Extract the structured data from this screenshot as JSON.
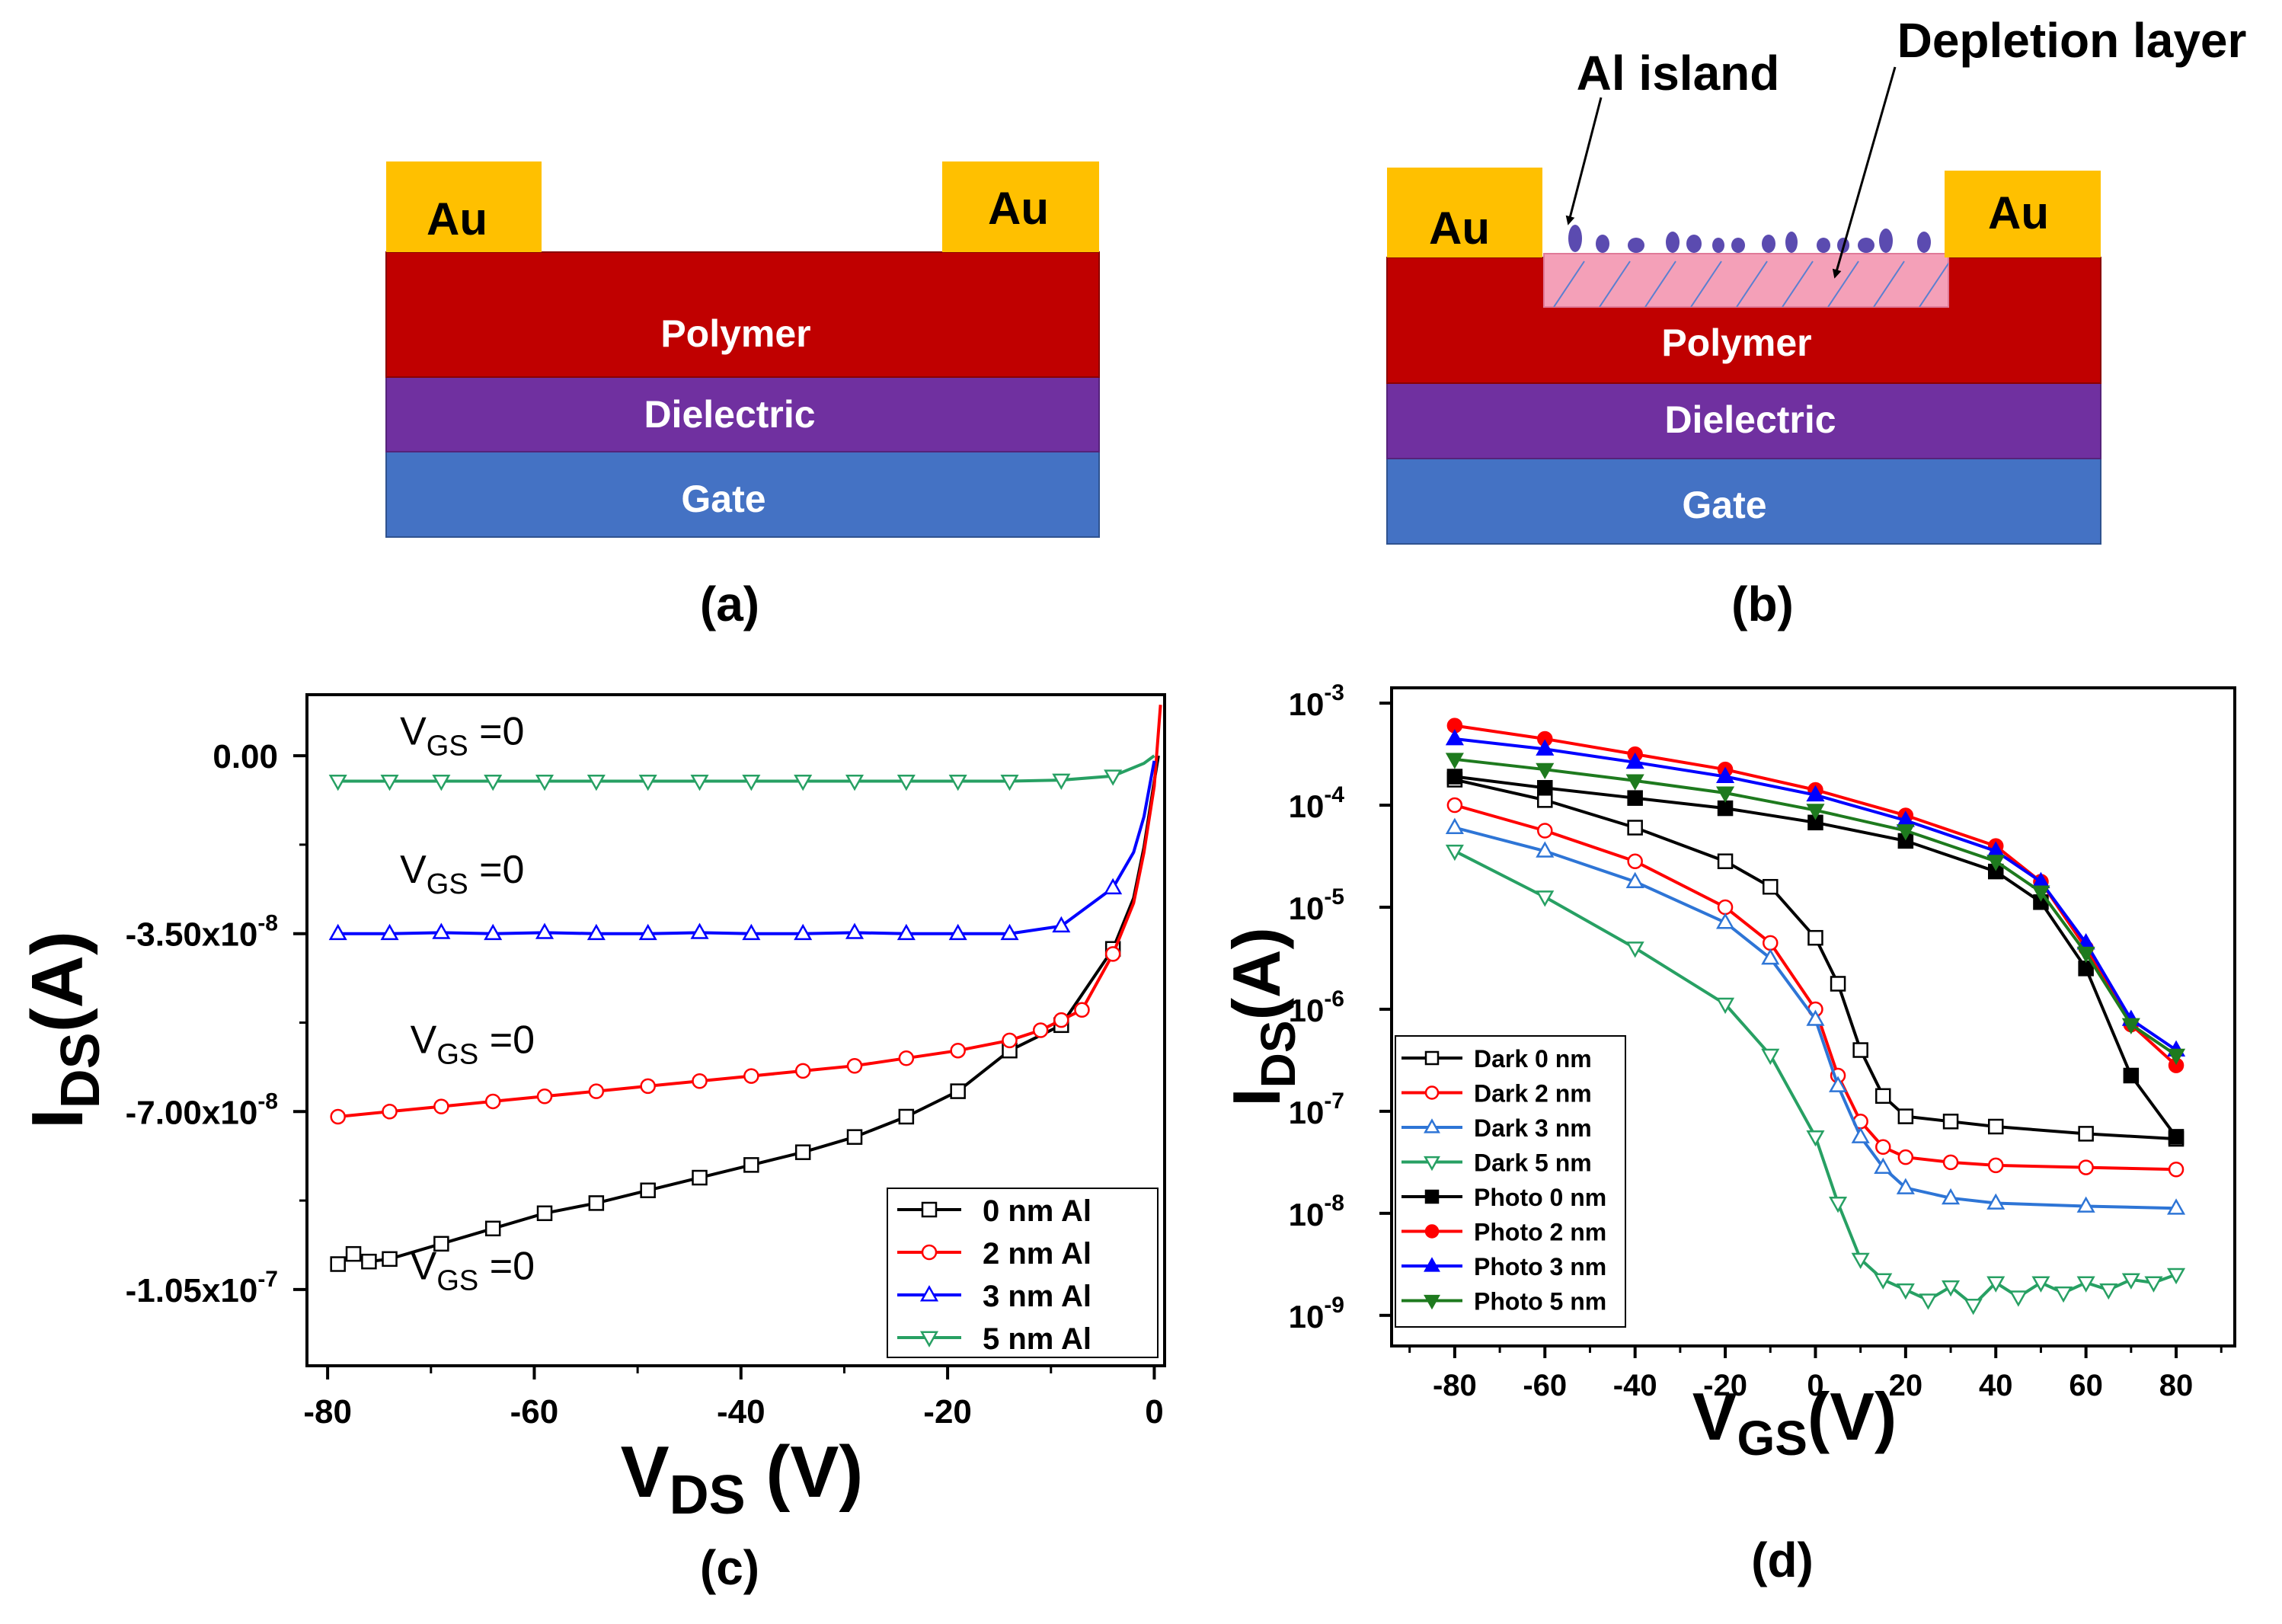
{
  "panel_a": {
    "label": "(a)",
    "layers": {
      "au_left": "Au",
      "au_right": "Au",
      "polymer": "Polymer",
      "dielectric": "Dielectric",
      "gate": "Gate"
    }
  },
  "panel_b": {
    "label": "(b)",
    "layers": {
      "au_left": "Au",
      "au_right": "Au",
      "polymer": "Polymer",
      "dielectric": "Dielectric",
      "gate": "Gate"
    },
    "annotations": {
      "al_island": "Al island",
      "depletion": "Depletion layer"
    }
  },
  "colors": {
    "au": "#FFC000",
    "polymer": "#C00000",
    "dielectric": "#7030A0",
    "gate": "#4472C4",
    "depletion": "#F4A0B8",
    "island": "#5B4BB0",
    "black": "#000000",
    "red": "#FF0000",
    "blue": "#0000FF",
    "green": "#27A063"
  },
  "chart_data": [
    {
      "panel": "(c)",
      "type": "line",
      "xlabel": "V",
      "xlabel_sub": "DS",
      "xlabel_unit": " (V)",
      "ylabel": "I",
      "ylabel_sub": "DS",
      "ylabel_unit": "(A)",
      "xlim": [
        -82,
        1
      ],
      "ylim": [
        -1.2e-07,
        1.2e-08
      ],
      "xticks": [
        -80,
        -60,
        -40,
        -20,
        0
      ],
      "xtick_labels": [
        "-80",
        "-60",
        "-40",
        "-20",
        "0"
      ],
      "yticks": [
        0,
        -3.5e-08,
        -7e-08,
        -1.05e-07
      ],
      "ytick_labels": [
        {
          "mant": "0.00",
          "exp": ""
        },
        {
          "mant": "-3.50x10",
          "exp": "-8"
        },
        {
          "mant": "-7.00x10",
          "exp": "-8"
        },
        {
          "mant": "-1.05x10",
          "exp": "-7"
        }
      ],
      "annotations": [
        {
          "text": "V",
          "sub": "GS",
          "rest": " =0",
          "x": -73,
          "y": 2.2e-09
        },
        {
          "text": "V",
          "sub": "GS",
          "rest": " =0",
          "x": -73,
          "y": -2.5e-08
        },
        {
          "text": "V",
          "sub": "GS",
          "rest": " =0",
          "x": -72,
          "y": -5.85e-08
        },
        {
          "text": "V",
          "sub": "GS",
          "rest": " =0",
          "x": -72,
          "y": -1.03e-07
        }
      ],
      "legend": [
        "0 nm Al",
        "2 nm Al",
        "3 nm Al",
        "5 nm Al"
      ],
      "series": [
        {
          "name": "0 nm Al",
          "color": "#000000",
          "marker": "square",
          "x": [
            -79,
            -77.5,
            -76,
            -74,
            -69,
            -64,
            -59,
            -54,
            -49,
            -44,
            -39,
            -34,
            -29,
            -24,
            -19,
            -14,
            -9,
            -4,
            -2,
            -1,
            0,
            0.4
          ],
          "y": [
            -1e-07,
            -9.8e-08,
            -9.95e-08,
            -9.9e-08,
            -9.6e-08,
            -9.3e-08,
            -9e-08,
            -8.8e-08,
            -8.55e-08,
            -8.3e-08,
            -8.05e-08,
            -7.8e-08,
            -7.5e-08,
            -7.1e-08,
            -6.6e-08,
            -5.8e-08,
            -5.3e-08,
            -3.8e-08,
            -2.8e-08,
            -1.8e-08,
            -5e-09,
            0
          ]
        },
        {
          "name": "2 nm Al",
          "color": "#FF0000",
          "marker": "circle",
          "x": [
            -79,
            -74,
            -69,
            -64,
            -59,
            -54,
            -49,
            -44,
            -39,
            -34,
            -29,
            -24,
            -19,
            -14,
            -11,
            -9,
            -7,
            -4,
            -2,
            -1,
            0,
            0.3,
            0.6
          ],
          "y": [
            -7.1e-08,
            -7e-08,
            -6.9e-08,
            -6.8e-08,
            -6.7e-08,
            -6.6e-08,
            -6.5e-08,
            -6.4e-08,
            -6.3e-08,
            -6.2e-08,
            -6.1e-08,
            -5.95e-08,
            -5.8e-08,
            -5.6e-08,
            -5.4e-08,
            -5.2e-08,
            -5e-08,
            -3.9e-08,
            -2.9e-08,
            -1.9e-08,
            -6e-09,
            2e-09,
            1e-08
          ]
        },
        {
          "name": "3 nm Al",
          "color": "#0000FF",
          "marker": "triangle-up",
          "x": [
            -79,
            -74,
            -69,
            -64,
            -59,
            -54,
            -49,
            -44,
            -39,
            -34,
            -29,
            -24,
            -19,
            -14,
            -9,
            -4,
            -2,
            -1,
            0
          ],
          "y": [
            -3.5e-08,
            -3.5e-08,
            -3.48e-08,
            -3.5e-08,
            -3.48e-08,
            -3.5e-08,
            -3.5e-08,
            -3.48e-08,
            -3.5e-08,
            -3.5e-08,
            -3.48e-08,
            -3.5e-08,
            -3.5e-08,
            -3.5e-08,
            -3.35e-08,
            -2.6e-08,
            -1.9e-08,
            -1.2e-08,
            -1e-09
          ]
        },
        {
          "name": "5 nm Al",
          "color": "#27A063",
          "marker": "triangle-down",
          "x": [
            -79,
            -74,
            -69,
            -64,
            -59,
            -54,
            -49,
            -44,
            -39,
            -34,
            -29,
            -24,
            -19,
            -14,
            -9,
            -4,
            -1,
            0
          ],
          "y": [
            -5e-09,
            -5e-09,
            -5e-09,
            -5e-09,
            -5e-09,
            -5e-09,
            -5e-09,
            -5e-09,
            -5e-09,
            -5e-09,
            -5e-09,
            -5e-09,
            -5e-09,
            -5e-09,
            -4.8e-09,
            -4e-09,
            -1.5e-09,
            0
          ]
        }
      ]
    },
    {
      "panel": "(d)",
      "type": "line",
      "yscale": "log",
      "xlabel": "V",
      "xlabel_sub": "GS",
      "xlabel_unit": "(V)",
      "ylabel": "I",
      "ylabel_sub": "DS",
      "ylabel_unit": "(A)",
      "xlim": [
        -94,
        93
      ],
      "ylim_exp": [
        -9.3,
        -2.85
      ],
      "xticks": [
        -80,
        -60,
        -40,
        -20,
        0,
        20,
        40,
        60,
        80
      ],
      "xtick_labels": [
        "-80",
        "-60",
        "-40",
        "-20",
        "0",
        "20",
        "40",
        "60",
        "80"
      ],
      "yticks_exp": [
        -3,
        -4,
        -5,
        -6,
        -7,
        -8,
        -9
      ],
      "ytick_labels": [
        {
          "mant": "10",
          "exp": "-3"
        },
        {
          "mant": "10",
          "exp": "-4"
        },
        {
          "mant": "10",
          "exp": "-5"
        },
        {
          "mant": "10",
          "exp": "-6"
        },
        {
          "mant": "10",
          "exp": "-7"
        },
        {
          "mant": "10",
          "exp": "-8"
        },
        {
          "mant": "10",
          "exp": "-9"
        }
      ],
      "legend": [
        "Dark 0 nm",
        "Dark 2 nm",
        "Dark 3 nm",
        "Dark 5 nm",
        "Photo 0 nm",
        "Photo 2 nm",
        "Photo 3 nm",
        "Photo 5 nm"
      ],
      "series": [
        {
          "name": "Dark 0 nm",
          "color": "#000000",
          "marker": "square",
          "filled": false,
          "x": [
            -80,
            -60,
            -40,
            -20,
            -10,
            0,
            5,
            10,
            15,
            20,
            30,
            40,
            60,
            80
          ],
          "y_exp": [
            -3.75,
            -3.95,
            -4.22,
            -4.55,
            -4.8,
            -5.3,
            -5.75,
            -6.4,
            -6.85,
            -7.05,
            -7.1,
            -7.15,
            -7.22,
            -7.27
          ]
        },
        {
          "name": "Dark 2 nm",
          "color": "#FF0000",
          "marker": "circle",
          "filled": false,
          "x": [
            -80,
            -60,
            -40,
            -20,
            -10,
            0,
            5,
            10,
            15,
            20,
            30,
            40,
            60,
            80
          ],
          "y_exp": [
            -4.0,
            -4.25,
            -4.55,
            -5.0,
            -5.35,
            -6.0,
            -6.65,
            -7.1,
            -7.35,
            -7.45,
            -7.5,
            -7.53,
            -7.55,
            -7.57
          ]
        },
        {
          "name": "Dark 3 nm",
          "color": "#2E75D6",
          "marker": "triangle-up",
          "filled": false,
          "x": [
            -80,
            -60,
            -40,
            -20,
            -10,
            0,
            5,
            10,
            15,
            20,
            30,
            40,
            60,
            80
          ],
          "y_exp": [
            -4.22,
            -4.45,
            -4.75,
            -5.15,
            -5.5,
            -6.1,
            -6.75,
            -7.25,
            -7.55,
            -7.75,
            -7.85,
            -7.9,
            -7.93,
            -7.95
          ]
        },
        {
          "name": "Dark 5 nm",
          "color": "#27A063",
          "marker": "triangle-down",
          "filled": false,
          "x": [
            -80,
            -60,
            -40,
            -20,
            -10,
            0,
            5,
            10,
            15,
            20,
            25,
            30,
            35,
            40,
            45,
            50,
            55,
            60,
            65,
            70,
            75,
            80
          ],
          "y_exp": [
            -4.45,
            -4.9,
            -5.4,
            -5.95,
            -6.45,
            -7.25,
            -7.9,
            -8.45,
            -8.65,
            -8.75,
            -8.85,
            -8.72,
            -8.9,
            -8.68,
            -8.82,
            -8.68,
            -8.78,
            -8.68,
            -8.75,
            -8.65,
            -8.68,
            -8.6
          ]
        },
        {
          "name": "Photo 0 nm",
          "color": "#000000",
          "marker": "square",
          "filled": true,
          "x": [
            -80,
            -60,
            -40,
            -20,
            0,
            20,
            40,
            50,
            60,
            70,
            80
          ],
          "y_exp": [
            -3.72,
            -3.83,
            -3.93,
            -4.03,
            -4.17,
            -4.35,
            -4.65,
            -4.95,
            -5.6,
            -6.65,
            -7.25
          ]
        },
        {
          "name": "Photo 2 nm",
          "color": "#FF0000",
          "marker": "circle",
          "filled": true,
          "x": [
            -80,
            -60,
            -40,
            -20,
            0,
            20,
            40,
            50,
            60,
            70,
            80
          ],
          "y_exp": [
            -3.22,
            -3.35,
            -3.5,
            -3.65,
            -3.85,
            -4.1,
            -4.4,
            -4.75,
            -5.4,
            -6.15,
            -6.55
          ]
        },
        {
          "name": "Photo 3 nm",
          "color": "#0000FF",
          "marker": "triangle-up",
          "filled": true,
          "x": [
            -80,
            -60,
            -40,
            -20,
            0,
            20,
            40,
            50,
            60,
            70,
            80
          ],
          "y_exp": [
            -3.35,
            -3.45,
            -3.58,
            -3.72,
            -3.9,
            -4.15,
            -4.45,
            -4.75,
            -5.35,
            -6.1,
            -6.4
          ]
        },
        {
          "name": "Photo 5 nm",
          "color": "#1E7A1E",
          "marker": "triangle-down",
          "filled": true,
          "x": [
            -80,
            -60,
            -40,
            -20,
            0,
            20,
            40,
            50,
            60,
            70,
            80
          ],
          "y_exp": [
            -3.55,
            -3.65,
            -3.76,
            -3.88,
            -4.05,
            -4.25,
            -4.55,
            -4.85,
            -5.45,
            -6.15,
            -6.45
          ]
        }
      ]
    }
  ],
  "panel_labels": {
    "c": "(c)",
    "d": "(d)"
  }
}
